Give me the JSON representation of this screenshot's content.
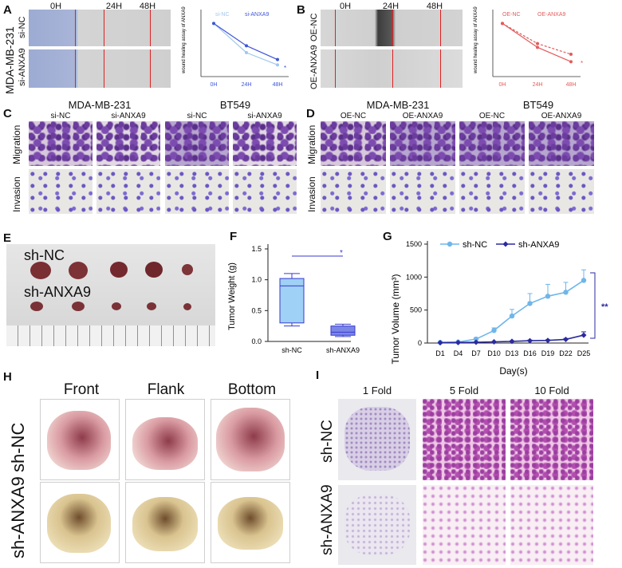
{
  "panels": {
    "A": "A",
    "B": "B",
    "C": "C",
    "D": "D",
    "E": "E",
    "F": "F",
    "G": "G",
    "H": "H",
    "I": "I"
  },
  "A": {
    "cell_line": "MDA-MB-231",
    "times": [
      "0H",
      "24H",
      "48H"
    ],
    "rows": [
      "si-NC",
      "si-ANXA9"
    ],
    "chart": {
      "ylabel": "wound healing assay of ANXA9",
      "legend": [
        "si-NC",
        "si-ANXA9"
      ],
      "sig": "*"
    }
  },
  "B": {
    "times": [
      "0H",
      "24H",
      "48H"
    ],
    "rows": [
      "OE-NC",
      "OE-ANXA9"
    ],
    "chart": {
      "ylabel": "wound healing assay of ANXA9",
      "legend": [
        "OE-NC",
        "OE-ANXA9"
      ],
      "sig": "*"
    }
  },
  "C": {
    "lines": [
      "MDA-MB-231",
      "BT549"
    ],
    "cols": [
      "si-NC",
      "si-ANXA9",
      "si-NC",
      "si-ANXA9"
    ],
    "rows": [
      "Migration",
      "Invasion"
    ]
  },
  "D": {
    "lines": [
      "MDA-MB-231",
      "BT549"
    ],
    "cols": [
      "OE-NC",
      "OE-ANXA9",
      "OE-NC",
      "OE-ANXA9"
    ],
    "rows": [
      "Migration",
      "Invasion"
    ]
  },
  "E": {
    "rows": [
      "sh-NC",
      "sh-ANXA9"
    ]
  },
  "F": {
    "ylabel": "Tumor Weight (g)",
    "sig": "*"
  },
  "G": {
    "xlabel": "Day(s)",
    "ylabel": "Tumor Volume (mm³)",
    "sig": "**"
  },
  "H": {
    "cols": [
      "Front",
      "Flank",
      "Bottom"
    ],
    "rows": [
      "sh-NC",
      "sh-ANXA9"
    ]
  },
  "I": {
    "cols": [
      "1 Fold",
      "5 Fold",
      "10 Fold"
    ],
    "rows": [
      "sh-NC",
      "sh-ANXA9"
    ]
  },
  "colors": {
    "light_blue": "#6fb6ea",
    "dark_blue": "#2b2aa0",
    "scratch_line": "#e02020",
    "chartA_nc": "#9fc7ef",
    "chartA_si": "#3f55d8",
    "chartB": "#e35b5b"
  },
  "chart_data": [
    {
      "type": "line",
      "x": [
        "0H",
        "24H",
        "48H"
      ],
      "ylabel": "wound healing assay of ANXA9",
      "series": [
        {
          "name": "si-NC",
          "values": [
            1.0,
            0.45,
            0.22
          ]
        },
        {
          "name": "si-ANXA9",
          "values": [
            1.0,
            0.58,
            0.32
          ]
        }
      ],
      "ylim": [
        0,
        1.2
      ]
    },
    {
      "type": "line",
      "x": [
        "0H",
        "24H",
        "48H"
      ],
      "ylabel": "wound healing assay of ANXA9",
      "series": [
        {
          "name": "OE-NC",
          "values": [
            1.0,
            0.62,
            0.42
          ]
        },
        {
          "name": "OE-ANXA9",
          "values": [
            1.0,
            0.55,
            0.28
          ]
        }
      ],
      "ylim": [
        0,
        1.2
      ]
    },
    {
      "type": "box",
      "categories": [
        "sh-NC",
        "sh-ANXA9"
      ],
      "ylabel": "Tumor Weight (g)",
      "yticks": [
        "0.0",
        "0.5",
        "1.0",
        "1.5"
      ],
      "ylim": [
        0,
        1.5
      ],
      "boxes": [
        {
          "min": 0.25,
          "q1": 0.3,
          "median": 0.9,
          "q3": 1.02,
          "max": 1.1
        },
        {
          "min": 0.08,
          "q1": 0.1,
          "median": 0.15,
          "q3": 0.25,
          "max": 0.28
        }
      ]
    },
    {
      "type": "line",
      "xlabel": "Day(s)",
      "ylabel": "Tumor Volume (mm³)",
      "x": [
        "D1",
        "D4",
        "D7",
        "D10",
        "D13",
        "D16",
        "D19",
        "D22",
        "D25"
      ],
      "yticks": [
        "0",
        "500",
        "1000",
        "1500"
      ],
      "ylim": [
        0,
        1500
      ],
      "series": [
        {
          "name": "sh-NC",
          "values": [
            10,
            15,
            60,
            190,
            410,
            600,
            710,
            770,
            950
          ],
          "err": [
            5,
            8,
            20,
            40,
            100,
            150,
            180,
            150,
            160
          ]
        },
        {
          "name": "sh-ANXA9",
          "values": [
            5,
            8,
            12,
            18,
            25,
            35,
            40,
            55,
            120
          ],
          "err": [
            2,
            3,
            4,
            5,
            8,
            10,
            10,
            15,
            50
          ]
        }
      ]
    }
  ]
}
